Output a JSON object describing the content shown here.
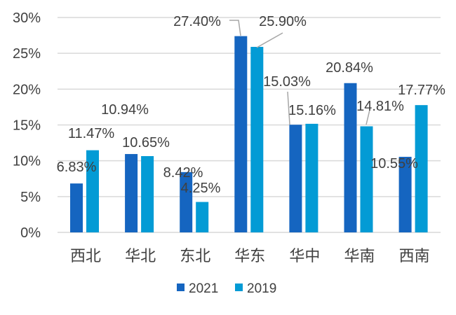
{
  "chart_data": {
    "type": "bar",
    "categories": [
      "西北",
      "华北",
      "东北",
      "华东",
      "华中",
      "华南",
      "西南"
    ],
    "series": [
      {
        "name": "2021",
        "color": "#1565C0",
        "values": [
          6.83,
          10.94,
          8.42,
          27.4,
          15.03,
          20.84,
          10.55
        ]
      },
      {
        "name": "2019",
        "color": "#039BD5",
        "values": [
          11.47,
          10.65,
          4.25,
          25.9,
          15.16,
          14.81,
          17.77
        ]
      }
    ],
    "data_labels": [
      [
        "6.83%",
        "10.94%",
        "8.42%",
        "27.40%",
        "15.03%",
        "20.84%",
        "10.55%"
      ],
      [
        "11.47%",
        "10.65%",
        "4.25%",
        "25.90%",
        "15.16%",
        "14.81%",
        "17.77%"
      ]
    ],
    "yticks": [
      "0%",
      "5%",
      "10%",
      "15%",
      "20%",
      "25%",
      "30%"
    ],
    "ylim": [
      0,
      30
    ],
    "grid": true,
    "legend_position": "bottom",
    "gridline_color": "#D9D9D9"
  }
}
